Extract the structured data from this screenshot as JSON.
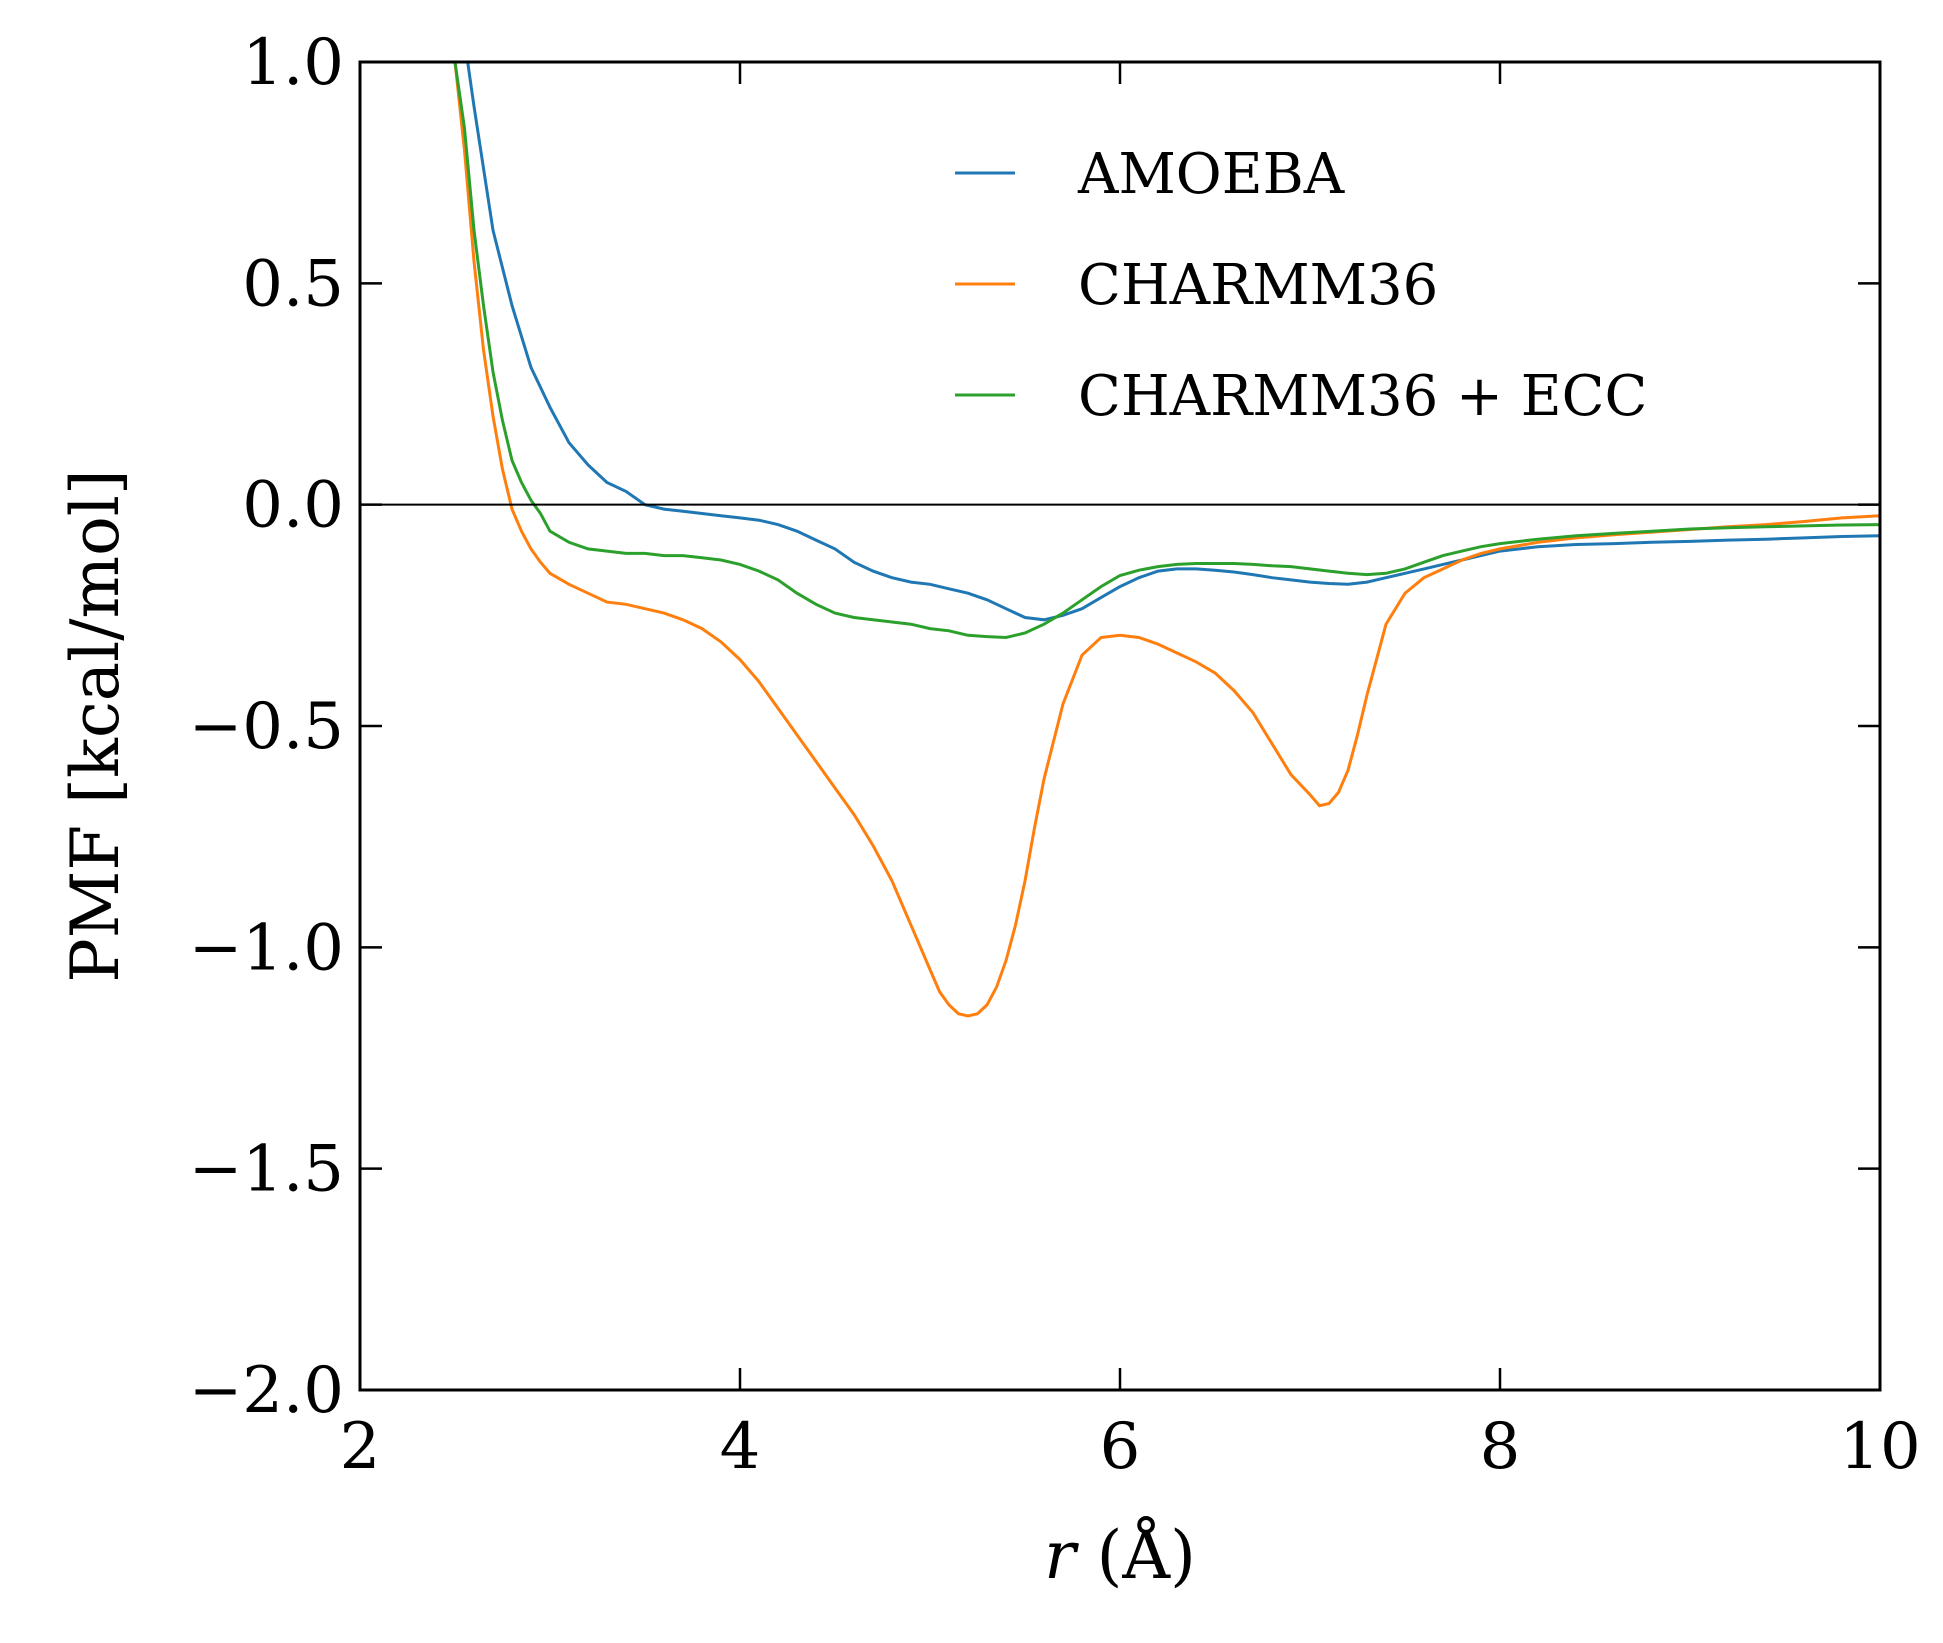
{
  "chart_data": {
    "type": "line",
    "title": "",
    "xlabel": "r (Å)",
    "xlabel_var": "r",
    "xlabel_unit": " (Å)",
    "ylabel": "PMF [kcal/mol]",
    "xlim": [
      2,
      10
    ],
    "ylim": [
      -2.0,
      1.0
    ],
    "xticks": [
      2,
      4,
      6,
      8,
      10
    ],
    "xtick_labels": [
      "2",
      "4",
      "6",
      "8",
      "10"
    ],
    "yticks": [
      -2.0,
      -1.5,
      -1.0,
      -0.5,
      0.0,
      0.5,
      1.0
    ],
    "ytick_labels": [
      "−2.0",
      "−1.5",
      "−1.0",
      "−0.5",
      "0.0",
      "0.5",
      "1.0"
    ],
    "reference_line_y": 0.0,
    "grid": false,
    "legend_position": "top-right",
    "series": [
      {
        "name": "AMOEBA",
        "color": "#1f77b4",
        "x": [
          2.55,
          2.6,
          2.7,
          2.8,
          2.9,
          3.0,
          3.1,
          3.2,
          3.3,
          3.4,
          3.5,
          3.6,
          3.7,
          3.8,
          3.9,
          4.0,
          4.1,
          4.2,
          4.3,
          4.4,
          4.5,
          4.6,
          4.7,
          4.8,
          4.9,
          5.0,
          5.1,
          5.2,
          5.3,
          5.4,
          5.5,
          5.6,
          5.7,
          5.8,
          5.9,
          6.0,
          6.1,
          6.2,
          6.3,
          6.4,
          6.5,
          6.6,
          6.7,
          6.8,
          6.9,
          7.0,
          7.1,
          7.2,
          7.3,
          7.4,
          7.5,
          7.6,
          7.7,
          7.8,
          7.9,
          8.0,
          8.2,
          8.4,
          8.6,
          8.8,
          9.0,
          9.2,
          9.4,
          9.6,
          9.8,
          10.0
        ],
        "values": [
          1.05,
          0.9,
          0.62,
          0.45,
          0.31,
          0.22,
          0.14,
          0.09,
          0.05,
          0.03,
          0.0,
          -0.01,
          -0.015,
          -0.02,
          -0.025,
          -0.03,
          -0.035,
          -0.045,
          -0.06,
          -0.08,
          -0.1,
          -0.13,
          -0.15,
          -0.165,
          -0.175,
          -0.18,
          -0.19,
          -0.2,
          -0.215,
          -0.235,
          -0.255,
          -0.26,
          -0.25,
          -0.235,
          -0.21,
          -0.185,
          -0.165,
          -0.15,
          -0.145,
          -0.145,
          -0.148,
          -0.152,
          -0.158,
          -0.165,
          -0.17,
          -0.175,
          -0.178,
          -0.18,
          -0.175,
          -0.165,
          -0.155,
          -0.145,
          -0.135,
          -0.125,
          -0.115,
          -0.105,
          -0.095,
          -0.09,
          -0.088,
          -0.085,
          -0.083,
          -0.08,
          -0.078,
          -0.075,
          -0.072,
          -0.07
        ]
      },
      {
        "name": "CHARMM36",
        "color": "#ff7f0e",
        "x": [
          2.5,
          2.55,
          2.6,
          2.65,
          2.7,
          2.75,
          2.8,
          2.85,
          2.9,
          2.95,
          3.0,
          3.1,
          3.2,
          3.3,
          3.4,
          3.5,
          3.6,
          3.7,
          3.8,
          3.9,
          4.0,
          4.1,
          4.2,
          4.3,
          4.4,
          4.5,
          4.6,
          4.7,
          4.8,
          4.9,
          5.0,
          5.05,
          5.1,
          5.15,
          5.2,
          5.25,
          5.3,
          5.35,
          5.4,
          5.45,
          5.5,
          5.55,
          5.6,
          5.7,
          5.8,
          5.9,
          6.0,
          6.1,
          6.2,
          6.3,
          6.4,
          6.5,
          6.6,
          6.7,
          6.8,
          6.9,
          7.0,
          7.05,
          7.1,
          7.15,
          7.2,
          7.25,
          7.3,
          7.35,
          7.4,
          7.5,
          7.6,
          7.7,
          7.8,
          7.9,
          8.0,
          8.2,
          8.4,
          8.6,
          8.8,
          9.0,
          9.2,
          9.4,
          9.6,
          9.8,
          10.0
        ],
        "values": [
          1.0,
          0.8,
          0.55,
          0.35,
          0.2,
          0.08,
          -0.01,
          -0.06,
          -0.1,
          -0.13,
          -0.155,
          -0.18,
          -0.2,
          -0.22,
          -0.225,
          -0.235,
          -0.245,
          -0.26,
          -0.28,
          -0.31,
          -0.35,
          -0.4,
          -0.46,
          -0.52,
          -0.58,
          -0.64,
          -0.7,
          -0.77,
          -0.85,
          -0.95,
          -1.05,
          -1.1,
          -1.13,
          -1.15,
          -1.155,
          -1.15,
          -1.13,
          -1.09,
          -1.03,
          -0.95,
          -0.85,
          -0.73,
          -0.62,
          -0.45,
          -0.34,
          -0.3,
          -0.295,
          -0.3,
          -0.315,
          -0.335,
          -0.355,
          -0.38,
          -0.42,
          -0.47,
          -0.54,
          -0.61,
          -0.655,
          -0.68,
          -0.675,
          -0.65,
          -0.6,
          -0.52,
          -0.43,
          -0.35,
          -0.27,
          -0.2,
          -0.165,
          -0.145,
          -0.125,
          -0.11,
          -0.1,
          -0.085,
          -0.075,
          -0.068,
          -0.062,
          -0.056,
          -0.05,
          -0.045,
          -0.038,
          -0.03,
          -0.025
        ]
      },
      {
        "name": "CHARMM36 + ECC",
        "color": "#2ca02c",
        "x": [
          2.5,
          2.55,
          2.6,
          2.65,
          2.7,
          2.75,
          2.8,
          2.85,
          2.9,
          2.95,
          3.0,
          3.1,
          3.2,
          3.3,
          3.4,
          3.5,
          3.6,
          3.7,
          3.8,
          3.9,
          4.0,
          4.1,
          4.2,
          4.3,
          4.4,
          4.5,
          4.6,
          4.7,
          4.8,
          4.9,
          5.0,
          5.1,
          5.2,
          5.3,
          5.4,
          5.5,
          5.6,
          5.7,
          5.8,
          5.9,
          6.0,
          6.1,
          6.2,
          6.3,
          6.4,
          6.5,
          6.6,
          6.7,
          6.8,
          6.9,
          7.0,
          7.1,
          7.2,
          7.3,
          7.4,
          7.5,
          7.6,
          7.7,
          7.8,
          7.9,
          8.0,
          8.2,
          8.4,
          8.6,
          8.8,
          9.0,
          9.2,
          9.4,
          9.6,
          9.8,
          10.0
        ],
        "values": [
          1.0,
          0.85,
          0.62,
          0.45,
          0.3,
          0.19,
          0.1,
          0.05,
          0.01,
          -0.02,
          -0.06,
          -0.085,
          -0.1,
          -0.105,
          -0.11,
          -0.11,
          -0.115,
          -0.115,
          -0.12,
          -0.125,
          -0.135,
          -0.15,
          -0.17,
          -0.2,
          -0.225,
          -0.245,
          -0.255,
          -0.26,
          -0.265,
          -0.27,
          -0.28,
          -0.285,
          -0.295,
          -0.298,
          -0.3,
          -0.29,
          -0.27,
          -0.245,
          -0.215,
          -0.185,
          -0.16,
          -0.148,
          -0.14,
          -0.135,
          -0.133,
          -0.133,
          -0.133,
          -0.135,
          -0.138,
          -0.14,
          -0.145,
          -0.15,
          -0.155,
          -0.158,
          -0.155,
          -0.145,
          -0.13,
          -0.115,
          -0.105,
          -0.095,
          -0.088,
          -0.078,
          -0.07,
          -0.065,
          -0.06,
          -0.055,
          -0.052,
          -0.05,
          -0.048,
          -0.046,
          -0.045
        ]
      }
    ]
  }
}
